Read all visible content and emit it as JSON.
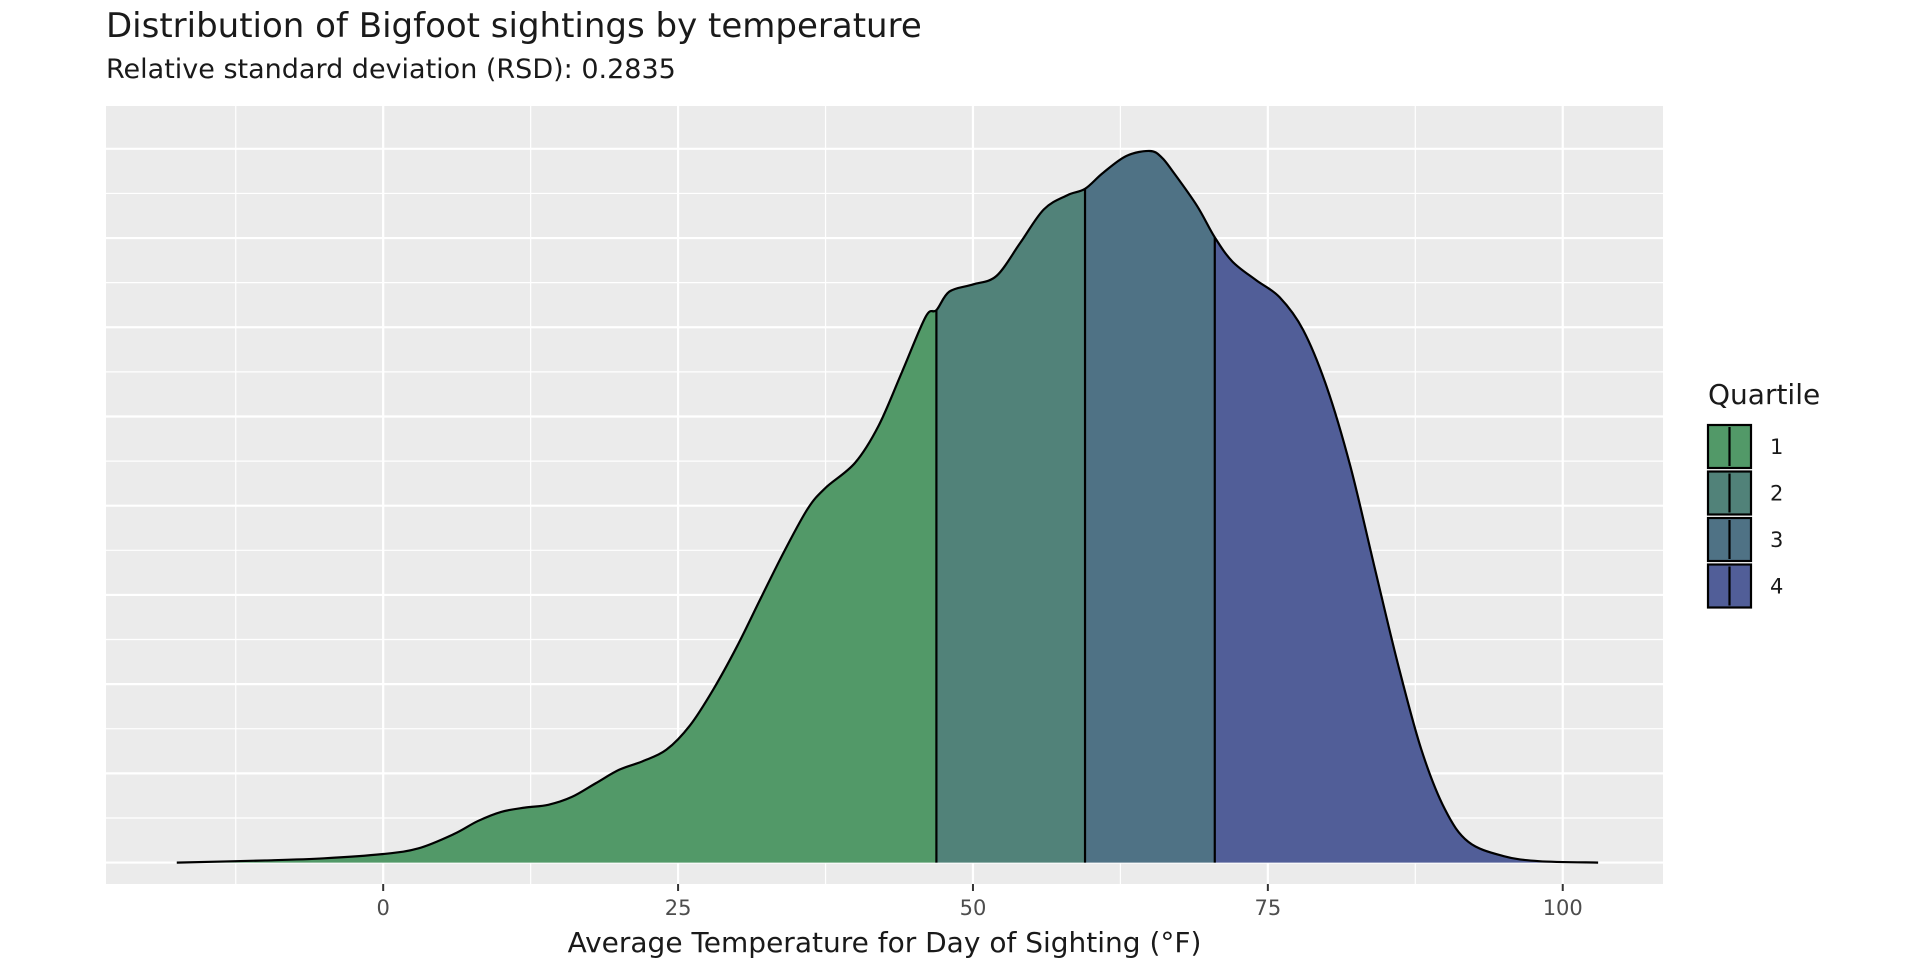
{
  "chart_data": {
    "type": "area",
    "title": "Distribution of Bigfoot sightings by temperature",
    "subtitle": "Relative standard deviation (RSD): 0.2835",
    "xlabel": "Average Temperature for Day of Sighting (°F)",
    "ylabel": "",
    "xlim": [
      -23.5,
      108.5
    ],
    "ylim": [
      -0.03,
      1.06
    ],
    "x_ticks": [
      0,
      25,
      50,
      75,
      100
    ],
    "y_ticks_shown": false,
    "grid": true,
    "legend": {
      "title": "Quartile",
      "position": "right",
      "entries": [
        "1",
        "2",
        "3",
        "4"
      ]
    },
    "quartile_breaks": [
      46.9,
      59.5,
      70.5
    ],
    "colors": {
      "q1": "#529968",
      "q2": "#518279",
      "q3": "#4f7285",
      "q4": "#515e98",
      "panel": "#ebebeb",
      "grid": "#ffffff"
    },
    "series": [
      {
        "x": [
          -17.5,
          -10,
          -5,
          0,
          3,
          6,
          8,
          10,
          12,
          14,
          16,
          18,
          20,
          22,
          24,
          26,
          28,
          30,
          32,
          34,
          36,
          37.5,
          40,
          42,
          44,
          46,
          46.9,
          48,
          50,
          52,
          54,
          56,
          58,
          59.5,
          61,
          63,
          65,
          66,
          67,
          69,
          70.5,
          72,
          74,
          76,
          78,
          80,
          82,
          84,
          86,
          88,
          90,
          92,
          95,
          98,
          103
        ],
        "y": [
          0.0,
          0.003,
          0.006,
          0.012,
          0.02,
          0.04,
          0.058,
          0.071,
          0.077,
          0.081,
          0.092,
          0.111,
          0.13,
          0.142,
          0.158,
          0.192,
          0.243,
          0.303,
          0.37,
          0.436,
          0.496,
          0.525,
          0.56,
          0.612,
          0.688,
          0.765,
          0.774,
          0.8,
          0.81,
          0.822,
          0.868,
          0.915,
          0.935,
          0.944,
          0.966,
          0.99,
          0.997,
          0.988,
          0.967,
          0.92,
          0.876,
          0.842,
          0.816,
          0.792,
          0.746,
          0.666,
          0.555,
          0.417,
          0.28,
          0.159,
          0.075,
          0.029,
          0.009,
          0.002,
          0.0
        ]
      }
    ]
  }
}
